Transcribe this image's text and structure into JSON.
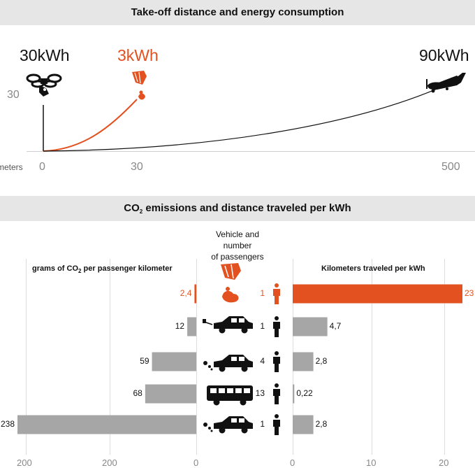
{
  "top": {
    "title": "Take-off distance and energy consumption",
    "y_tick": "30",
    "x_unit": "meters",
    "x_ticks": [
      "0",
      "30",
      "500"
    ],
    "energy": [
      {
        "label": "30kWh",
        "icon": "drone-icon",
        "color": "#111111"
      },
      {
        "label": "3kWh",
        "icon": "kite-icon",
        "color": "#e2511f"
      },
      {
        "label": "90kWh",
        "icon": "airplane-icon",
        "color": "#111111"
      }
    ]
  },
  "bottom": {
    "title_pre": "CO",
    "title_sub": "2",
    "title_post": " emissions and distance traveled per kWh",
    "center_header_line1": "Vehicle and number",
    "center_header_line2": "of passengers",
    "left_header_pre": "grams of CO",
    "left_header_sub": "2",
    "left_header_post": " per passenger kilometer",
    "right_header": "Kilometers traveled per kWh",
    "left_ticks": [
      "200",
      "200",
      "0"
    ],
    "right_ticks": [
      "0",
      "10",
      "20"
    ]
  },
  "colors": {
    "highlight": "#e2511f",
    "bar": "#a6a6a6",
    "band": "#e6e6e6"
  },
  "chart_data": [
    {
      "type": "line",
      "title": "Take-off distance and energy consumption",
      "xlabel": "meters",
      "x_ticks": [
        0,
        30,
        500
      ],
      "y_ticks": [
        30
      ],
      "series": [
        {
          "name": "30kWh",
          "x": [
            0,
            0
          ],
          "y": [
            0,
            30
          ]
        },
        {
          "name": "3kWh",
          "x": [
            0,
            10,
            20,
            30
          ],
          "y": [
            0,
            5,
            15,
            30
          ]
        },
        {
          "name": "90kWh",
          "x": [
            0,
            125,
            250,
            375,
            500
          ],
          "y": [
            0,
            3,
            9,
            18,
            30
          ]
        }
      ]
    },
    {
      "type": "bar",
      "title": "CO2 emissions and distance traveled per kWh",
      "categories": [
        "kite",
        "electric car",
        "car",
        "bus",
        "car"
      ],
      "passengers": [
        "1",
        "1",
        "4",
        "13",
        "1"
      ],
      "series": [
        {
          "name": "grams of CO2 per passenger kilometer",
          "values": [
            2.4,
            12,
            59,
            68,
            238
          ],
          "labels": [
            "2,4",
            "12",
            "59",
            "68",
            "238"
          ]
        },
        {
          "name": "Kilometers traveled per kWh",
          "values": [
            23,
            4.7,
            2.8,
            0.22,
            2.8
          ],
          "labels": [
            "23",
            "4,7",
            "2,8",
            "0,22",
            "2,8"
          ]
        }
      ]
    }
  ]
}
